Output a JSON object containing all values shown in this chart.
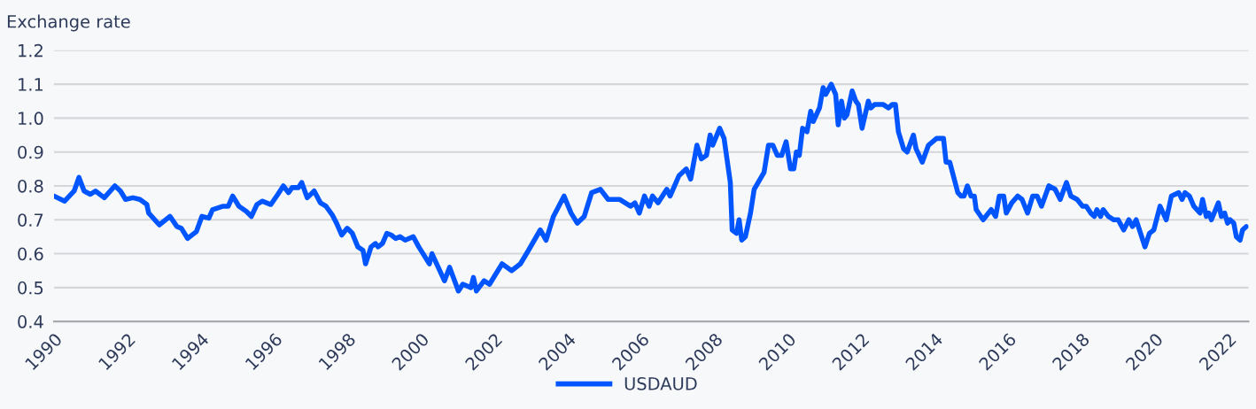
{
  "chart_data": {
    "type": "line",
    "ylabel": "Exchange rate",
    "xlim": [
      1990,
      2022.55
    ],
    "xticks": [
      {
        "value": 1990,
        "label": "1990"
      },
      {
        "value": 1992,
        "label": "1992"
      },
      {
        "value": 1994,
        "label": "1994"
      },
      {
        "value": 1996,
        "label": "1996"
      },
      {
        "value": 1998,
        "label": "1998"
      },
      {
        "value": 2000,
        "label": "2000"
      },
      {
        "value": 2002,
        "label": "2002"
      },
      {
        "value": 2004,
        "label": "2004"
      },
      {
        "value": 2006,
        "label": "2006"
      },
      {
        "value": 2008,
        "label": "2008"
      },
      {
        "value": 2010,
        "label": "2010"
      },
      {
        "value": 2012,
        "label": "2012"
      },
      {
        "value": 2014,
        "label": "2014"
      },
      {
        "value": 2016,
        "label": "2016"
      },
      {
        "value": 2018,
        "label": "2018"
      },
      {
        "value": 2020,
        "label": "2020"
      },
      {
        "value": 2022,
        "label": "2022"
      }
    ],
    "ylim": [
      0.4,
      1.2
    ],
    "yticks": [
      0.4,
      0.5,
      0.6,
      0.7,
      0.8,
      0.9,
      {
        "value": 1,
        "label": "1.0"
      },
      1.1,
      1.2
    ],
    "grid": "y",
    "legend": "bottom",
    "marker": "none",
    "line_style": "solid",
    "x": [
      1990.0,
      1990.29,
      1990.55,
      1990.68,
      1990.82,
      1990.99,
      1991.13,
      1991.37,
      1991.66,
      1991.81,
      1991.95,
      1992.15,
      1992.34,
      1992.53,
      1992.58,
      1992.87,
      1993.16,
      1993.35,
      1993.47,
      1993.64,
      1993.88,
      1994.03,
      1994.22,
      1994.32,
      1994.61,
      1994.75,
      1994.87,
      1995.04,
      1995.24,
      1995.38,
      1995.53,
      1995.67,
      1995.91,
      1996.1,
      1996.25,
      1996.39,
      1996.49,
      1996.66,
      1996.75,
      1996.9,
      1997.09,
      1997.26,
      1997.41,
      1997.58,
      1997.7,
      1997.84,
      1997.99,
      1998.13,
      1998.28,
      1998.42,
      1998.49,
      1998.64,
      1998.76,
      1998.83,
      1998.95,
      1999.07,
      1999.19,
      1999.31,
      1999.43,
      1999.57,
      1999.79,
      1999.94,
      2000.23,
      2000.3,
      2000.64,
      2000.78,
      2001.02,
      2001.14,
      2001.36,
      2001.43,
      2001.51,
      2001.72,
      2001.87,
      2002.21,
      2002.47,
      2002.71,
      2002.93,
      2003.25,
      2003.41,
      2003.61,
      2003.9,
      2004.09,
      2004.26,
      2004.45,
      2004.65,
      2004.89,
      2005.1,
      2005.42,
      2005.71,
      2005.83,
      2005.95,
      2006.09,
      2006.22,
      2006.31,
      2006.46,
      2006.7,
      2006.79,
      2007.03,
      2007.23,
      2007.35,
      2007.52,
      2007.64,
      2007.78,
      2007.88,
      2007.95,
      2008.14,
      2008.26,
      2008.43,
      2008.48,
      2008.6,
      2008.67,
      2008.74,
      2008.84,
      2008.98,
      2009.08,
      2009.35,
      2009.47,
      2009.59,
      2009.71,
      2009.83,
      2009.95,
      2010.07,
      2010.16,
      2010.23,
      2010.31,
      2010.4,
      2010.52,
      2010.62,
      2010.69,
      2010.86,
      2010.96,
      2011.03,
      2011.18,
      2011.3,
      2011.37,
      2011.46,
      2011.54,
      2011.61,
      2011.75,
      2011.85,
      2011.92,
      2012.02,
      2012.19,
      2012.26,
      2012.36,
      2012.48,
      2012.6,
      2012.74,
      2012.84,
      2012.93,
      2013.01,
      2013.15,
      2013.25,
      2013.42,
      2013.49,
      2013.66,
      2013.83,
      2014.05,
      2014.24,
      2014.31,
      2014.41,
      2014.63,
      2014.72,
      2014.8,
      2014.89,
      2014.99,
      2015.08,
      2015.13,
      2015.32,
      2015.54,
      2015.66,
      2015.76,
      2015.88,
      2015.95,
      2016.1,
      2016.26,
      2016.38,
      2016.53,
      2016.67,
      2016.79,
      2016.91,
      2017.11,
      2017.28,
      2017.42,
      2017.59,
      2017.71,
      2017.88,
      2018.03,
      2018.13,
      2018.25,
      2018.35,
      2018.42,
      2018.52,
      2018.59,
      2018.73,
      2018.88,
      2019.0,
      2019.15,
      2019.29,
      2019.39,
      2019.49,
      2019.61,
      2019.73,
      2019.85,
      2019.97,
      2020.14,
      2020.31,
      2020.45,
      2020.65,
      2020.74,
      2020.82,
      2020.94,
      2021.06,
      2021.23,
      2021.3,
      2021.4,
      2021.47,
      2021.54,
      2021.73,
      2021.81,
      2021.9,
      2021.98,
      2022.05,
      2022.15,
      2022.22,
      2022.32,
      2022.39,
      2022.49
    ],
    "series": [
      {
        "name": "USDAUD",
        "color": "#0055ff",
        "values": [
          0.77,
          0.755,
          0.785,
          0.825,
          0.785,
          0.775,
          0.785,
          0.765,
          0.8,
          0.785,
          0.76,
          0.765,
          0.76,
          0.745,
          0.72,
          0.685,
          0.71,
          0.68,
          0.675,
          0.645,
          0.665,
          0.71,
          0.705,
          0.73,
          0.74,
          0.74,
          0.77,
          0.74,
          0.725,
          0.71,
          0.745,
          0.755,
          0.745,
          0.775,
          0.8,
          0.78,
          0.795,
          0.795,
          0.81,
          0.765,
          0.785,
          0.75,
          0.74,
          0.715,
          0.69,
          0.655,
          0.675,
          0.66,
          0.62,
          0.61,
          0.57,
          0.62,
          0.63,
          0.62,
          0.63,
          0.66,
          0.655,
          0.645,
          0.65,
          0.64,
          0.65,
          0.62,
          0.57,
          0.6,
          0.52,
          0.56,
          0.49,
          0.51,
          0.5,
          0.53,
          0.49,
          0.52,
          0.51,
          0.57,
          0.55,
          0.57,
          0.61,
          0.67,
          0.64,
          0.71,
          0.77,
          0.72,
          0.69,
          0.71,
          0.78,
          0.79,
          0.76,
          0.76,
          0.74,
          0.75,
          0.72,
          0.77,
          0.74,
          0.77,
          0.75,
          0.79,
          0.77,
          0.83,
          0.85,
          0.82,
          0.92,
          0.88,
          0.89,
          0.95,
          0.92,
          0.97,
          0.94,
          0.81,
          0.67,
          0.66,
          0.7,
          0.64,
          0.65,
          0.72,
          0.79,
          0.84,
          0.92,
          0.92,
          0.89,
          0.89,
          0.93,
          0.85,
          0.85,
          0.9,
          0.89,
          0.97,
          0.96,
          1.02,
          0.99,
          1.03,
          1.09,
          1.07,
          1.1,
          1.07,
          0.98,
          1.05,
          1.0,
          1.01,
          1.08,
          1.05,
          1.04,
          0.97,
          1.05,
          1.03,
          1.04,
          1.04,
          1.04,
          1.03,
          1.04,
          1.04,
          0.96,
          0.91,
          0.9,
          0.95,
          0.91,
          0.87,
          0.92,
          0.94,
          0.94,
          0.87,
          0.87,
          0.78,
          0.77,
          0.77,
          0.8,
          0.77,
          0.77,
          0.73,
          0.7,
          0.73,
          0.71,
          0.77,
          0.77,
          0.72,
          0.75,
          0.77,
          0.76,
          0.72,
          0.77,
          0.77,
          0.74,
          0.8,
          0.79,
          0.76,
          0.81,
          0.77,
          0.76,
          0.74,
          0.74,
          0.72,
          0.71,
          0.73,
          0.71,
          0.73,
          0.71,
          0.7,
          0.7,
          0.67,
          0.7,
          0.68,
          0.7,
          0.66,
          0.62,
          0.66,
          0.67,
          0.74,
          0.7,
          0.77,
          0.78,
          0.76,
          0.78,
          0.77,
          0.74,
          0.72,
          0.76,
          0.71,
          0.72,
          0.7,
          0.75,
          0.71,
          0.72,
          0.69,
          0.7,
          0.69,
          0.65,
          0.64,
          0.67,
          0.68
        ]
      }
    ]
  }
}
